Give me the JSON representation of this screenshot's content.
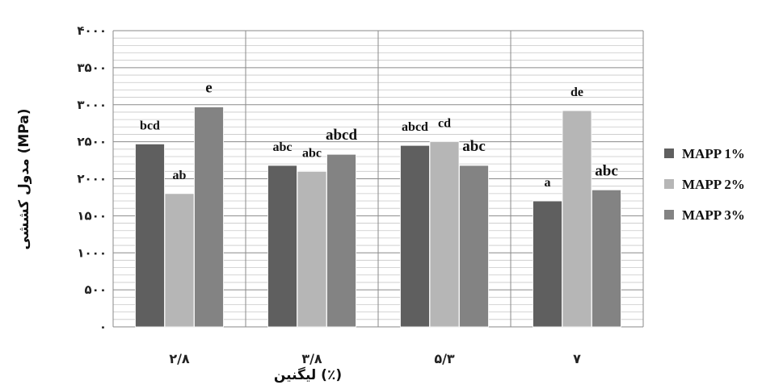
{
  "chart_data": {
    "type": "bar",
    "categories": [
      "۲/۸",
      "۳/۸",
      "۵/۳",
      "۷"
    ],
    "series": [
      {
        "name": "MAPP 1%",
        "color": "#5f5f5f",
        "values": [
          2470,
          2180,
          2450,
          1700
        ],
        "labels": [
          "bcd",
          "abc",
          "abcd",
          "a"
        ]
      },
      {
        "name": "MAPP 2%",
        "color": "#b6b6b6",
        "values": [
          1800,
          2100,
          2500,
          2920
        ],
        "labels": [
          "ab",
          "abc",
          "cd",
          "de"
        ]
      },
      {
        "name": "MAPP 3%",
        "color": "#838383",
        "values": [
          2970,
          2330,
          2180,
          1850
        ],
        "labels": [
          "e",
          "abcd",
          "abc",
          "abc"
        ]
      }
    ],
    "yticks": [
      "٠",
      "۵٠٠",
      "١٠٠٠",
      "١۵٠٠",
      "٢٠٠٠",
      "٢۵٠٠",
      "٣٠٠٠",
      "٣۵٠٠",
      "۴٠٠٠"
    ],
    "ylim": [
      0,
      4000
    ],
    "ylabel": "مدول کششی (MPa)",
    "xlabel": "لیگنین (٪)",
    "title": "",
    "legend_position": "right",
    "grid": true
  }
}
